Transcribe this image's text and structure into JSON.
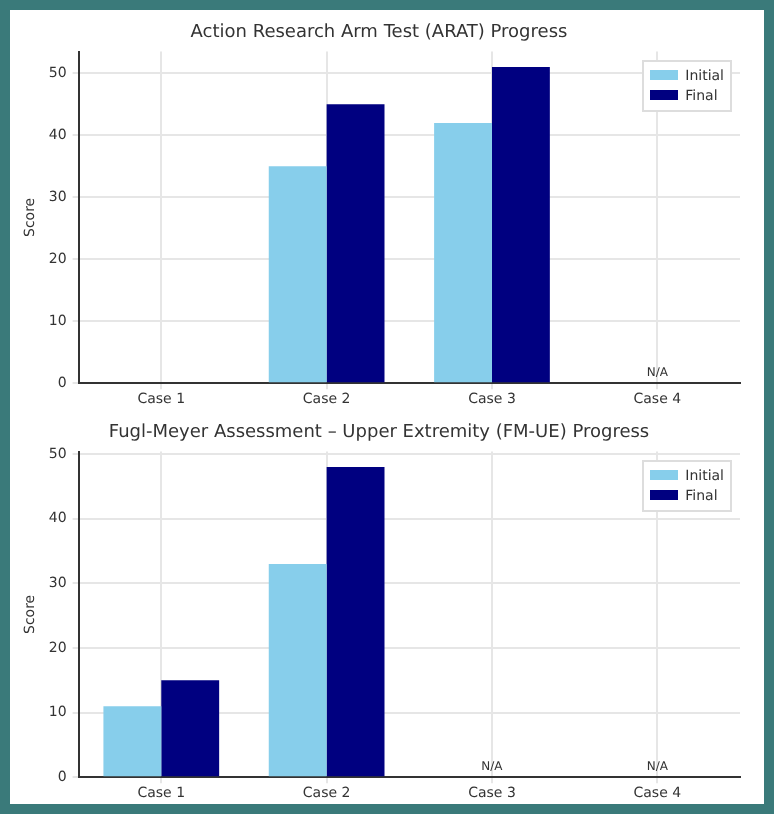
{
  "chart_data": [
    {
      "type": "bar",
      "title": "Action Research Arm Test (ARAT) Progress",
      "ylabel": "Score",
      "categories": [
        "Case 1",
        "Case 2",
        "Case 3",
        "Case 4"
      ],
      "series": [
        {
          "name": "Initial",
          "color": "#87ceeb",
          "values": [
            null,
            35,
            42,
            null
          ],
          "value_labels": [
            null,
            null,
            null,
            "N/A"
          ]
        },
        {
          "name": "Final",
          "color": "#000080",
          "values": [
            null,
            45,
            51,
            null
          ]
        }
      ],
      "ylim": [
        0,
        53.5
      ],
      "yticks": [
        0,
        10,
        20,
        30,
        40,
        50
      ],
      "grid": true,
      "legend": "top right"
    },
    {
      "type": "bar",
      "title": "Fugl-Meyer Assessment – Upper Extremity (FM-UE) Progress",
      "ylabel": "Score",
      "categories": [
        "Case 1",
        "Case 2",
        "Case 3",
        "Case 4"
      ],
      "series": [
        {
          "name": "Initial",
          "color": "#87ceeb",
          "values": [
            11,
            33,
            null,
            null
          ],
          "value_labels": [
            null,
            null,
            "N/A",
            "N/A"
          ]
        },
        {
          "name": "Final",
          "color": "#000080",
          "values": [
            15,
            48,
            null,
            null
          ]
        }
      ],
      "ylim": [
        0,
        50.4
      ],
      "yticks": [
        0,
        10,
        20,
        30,
        40,
        50
      ],
      "grid": true,
      "legend": "top right"
    }
  ]
}
